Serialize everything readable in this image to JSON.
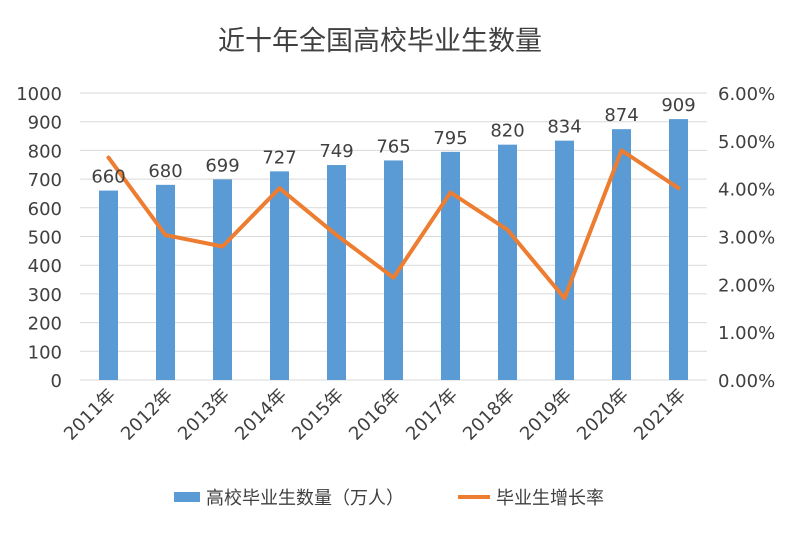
{
  "chart_data": {
    "type": "bar",
    "title": "近十年全国高校毕业生数量",
    "categories": [
      "2011年",
      "2012年",
      "2013年",
      "2014年",
      "2015年",
      "2016年",
      "2017年",
      "2018年",
      "2019年",
      "2020年",
      "2021年"
    ],
    "series": [
      {
        "name": "高校毕业生数量（万人）",
        "type": "bar",
        "axis": "left",
        "color": "#5B9BD5",
        "values": [
          660,
          680,
          699,
          727,
          749,
          765,
          795,
          820,
          834,
          874,
          909
        ],
        "data_labels": [
          "660",
          "680",
          "699",
          "727",
          "749",
          "765",
          "795",
          "820",
          "834",
          "874",
          "909"
        ]
      },
      {
        "name": "毕业生增长率",
        "type": "line",
        "axis": "right",
        "color": "#ED7D31",
        "values": [
          0.0465,
          0.0303,
          0.0279,
          0.0401,
          0.0303,
          0.0214,
          0.0392,
          0.0314,
          0.0171,
          0.048,
          0.0401
        ]
      }
    ],
    "y_left": {
      "lim": [
        0,
        1000
      ],
      "ticks": [
        0,
        100,
        200,
        300,
        400,
        500,
        600,
        700,
        800,
        900,
        1000
      ],
      "tick_labels": [
        "0",
        "100",
        "200",
        "300",
        "400",
        "500",
        "600",
        "700",
        "800",
        "900",
        "1000"
      ]
    },
    "y_right": {
      "lim": [
        0,
        0.06
      ],
      "ticks": [
        0,
        0.01,
        0.02,
        0.03,
        0.04,
        0.05,
        0.06
      ],
      "tick_labels": [
        "0.00%",
        "1.00%",
        "2.00%",
        "3.00%",
        "4.00%",
        "5.00%",
        "6.00%"
      ]
    },
    "grid": true,
    "legend_position": "bottom",
    "colors": {
      "grid": "#D9D9D9",
      "text": "#404040"
    }
  }
}
